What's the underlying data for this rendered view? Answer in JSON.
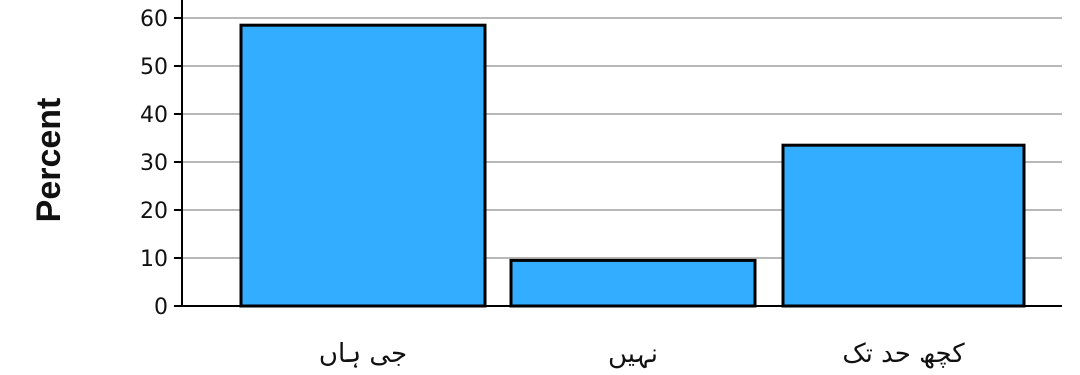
{
  "chart_data": {
    "type": "bar",
    "categories": [
      "جی ہاں",
      "نہیں",
      "کچھ حد تک"
    ],
    "values": [
      58.5,
      9.5,
      33.5
    ],
    "xlabel": "",
    "ylabel": "Percent",
    "ylim": [
      0,
      60
    ],
    "yticks": [
      0,
      10,
      20,
      30,
      40,
      50,
      60
    ],
    "grid": true,
    "bar_color": "#33adff",
    "bar_edge_color": "#000000"
  }
}
